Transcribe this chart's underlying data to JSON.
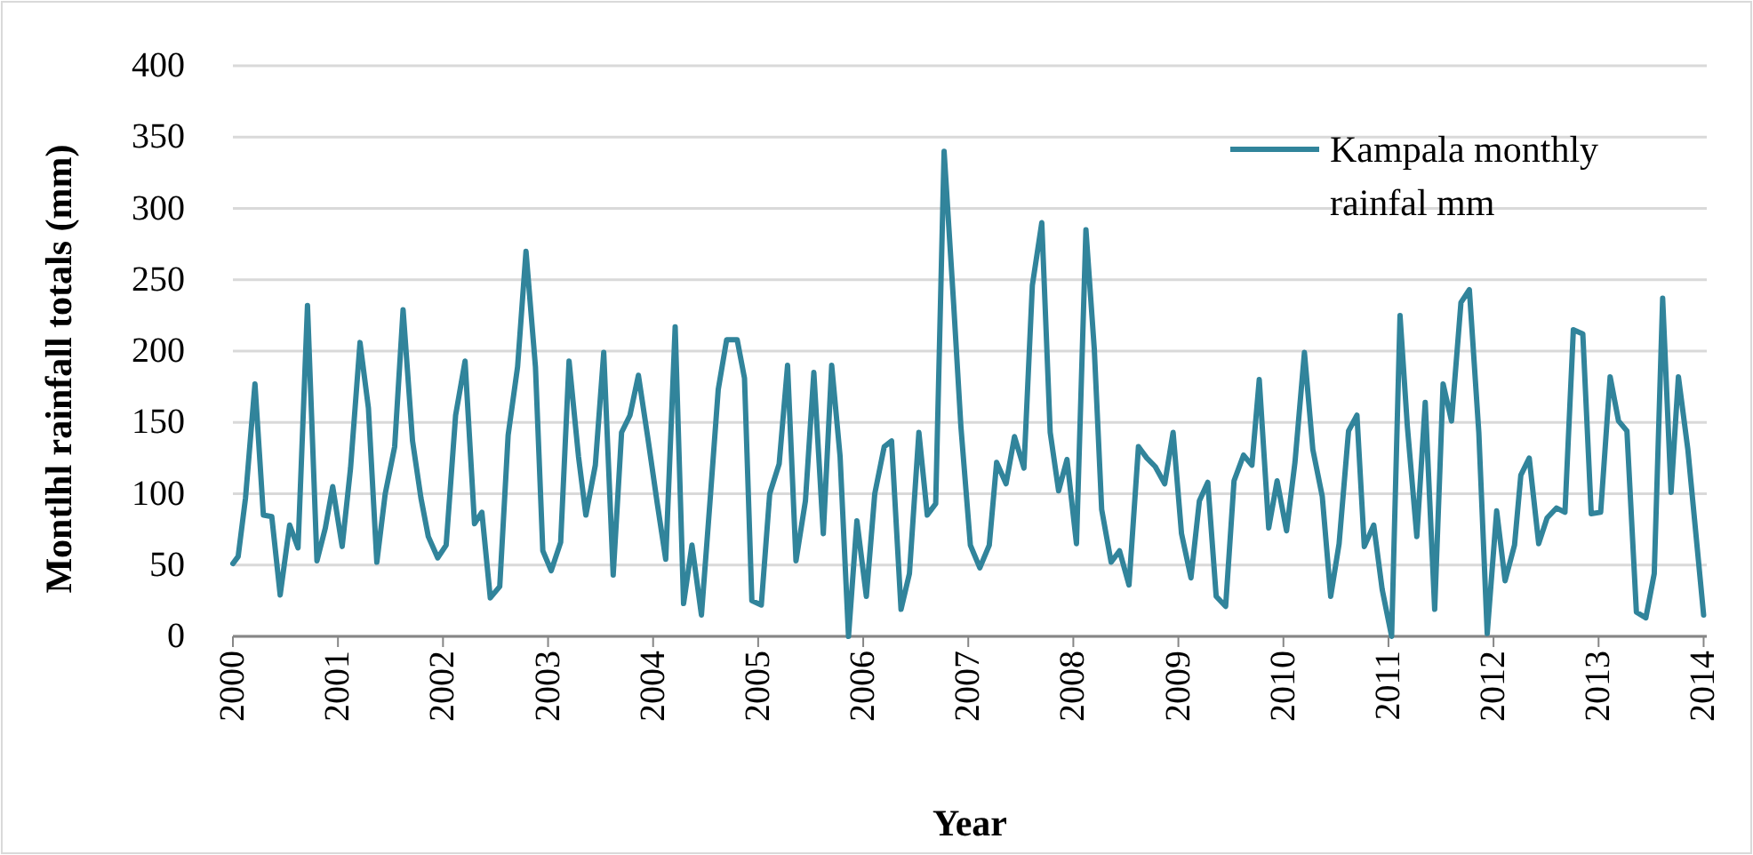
{
  "chart_data": {
    "type": "line",
    "xlabel": "Year",
    "ylabel": "Montlhl rainfall totals  (mm)",
    "xlim": [
      2000,
      2014.03
    ],
    "xticks": [
      2000,
      2001,
      2002,
      2003,
      2004,
      2005,
      2006,
      2007,
      2008,
      2009,
      2010,
      2011,
      2012,
      2013,
      2014
    ],
    "ylim": [
      0,
      400
    ],
    "yticks": [
      0,
      50,
      100,
      150,
      200,
      250,
      300,
      350,
      400
    ],
    "grid": "y",
    "legend": "top right",
    "marker": "none",
    "line_style": "solid",
    "series": [
      {
        "name": "Kampala monthly rainfal mm",
        "color": "#31849b",
        "x": [
          2000,
          2000.05,
          2000.12,
          2000.21,
          2000.29,
          2000.37,
          2000.45,
          2000.54,
          2000.62,
          2000.71,
          2000.8,
          2000.88,
          2000.95,
          2001.04,
          2001.12,
          2001.21,
          2001.29,
          2001.37,
          2001.45,
          2001.54,
          2001.62,
          2001.71,
          2001.79,
          2001.86,
          2001.95,
          2002.03,
          2002.12,
          2002.21,
          2002.3,
          2002.37,
          2002.45,
          2002.54,
          2002.62,
          2002.71,
          2002.79,
          2002.88,
          2002.95,
          2003.03,
          2003.12,
          2003.2,
          2003.29,
          2003.36,
          2003.45,
          2003.53,
          2003.62,
          2003.7,
          2003.78,
          2003.86,
          2003.95,
          2004.04,
          2004.12,
          2004.21,
          2004.29,
          2004.37,
          2004.46,
          2004.54,
          2004.62,
          2004.7,
          2004.8,
          2004.87,
          2004.94,
          2005.03,
          2005.11,
          2005.2,
          2005.28,
          2005.36,
          2005.45,
          2005.53,
          2005.62,
          2005.7,
          2005.78,
          2005.86,
          2005.94,
          2006.03,
          2006.11,
          2006.2,
          2006.27,
          2006.36,
          2006.44,
          2006.53,
          2006.61,
          2006.69,
          2006.77,
          2006.86,
          2006.93,
          2007.02,
          2007.11,
          2007.2,
          2007.27,
          2007.36,
          2007.44,
          2007.53,
          2007.61,
          2007.7,
          2007.78,
          2007.86,
          2007.94,
          2008.03,
          2008.12,
          2008.2,
          2008.27,
          2008.36,
          2008.44,
          2008.53,
          2008.62,
          2008.7,
          2008.78,
          2008.87,
          2008.95,
          2009.03,
          2009.12,
          2009.2,
          2009.28,
          2009.36,
          2009.45,
          2009.53,
          2009.62,
          2009.7,
          2009.77,
          2009.86,
          2009.94,
          2010.03,
          2010.11,
          2010.2,
          2010.28,
          2010.37,
          2010.45,
          2010.53,
          2010.62,
          2010.7,
          2010.77,
          2010.86,
          2010.94,
          2011.03,
          2011.11,
          2011.18,
          2011.27,
          2011.35,
          2011.44,
          2011.52,
          2011.6,
          2011.69,
          2011.77,
          2011.86,
          2011.94,
          2012.03,
          2012.11,
          2012.2,
          2012.26,
          2012.34,
          2012.43,
          2012.51,
          2012.6,
          2012.68,
          2012.76,
          2012.85,
          2012.93,
          2013.02,
          2013.11,
          2013.19,
          2013.27,
          2013.36,
          2013.45,
          2013.53,
          2013.61,
          2013.69,
          2013.76,
          2013.85,
          2014.0
        ],
        "values": [
          51,
          56,
          97,
          177,
          85,
          84,
          29,
          78,
          62,
          232,
          53,
          76,
          105,
          63,
          118,
          206,
          160,
          52,
          100,
          133,
          229,
          137,
          97,
          70,
          55,
          64,
          155,
          193,
          79,
          87,
          27,
          35,
          141,
          189,
          270,
          189,
          60,
          46,
          66,
          193,
          126,
          85,
          120,
          199,
          43,
          143,
          155,
          183,
          139,
          93,
          54,
          217,
          23,
          64,
          15,
          93,
          173,
          208,
          208,
          181,
          25,
          22,
          100,
          121,
          190,
          53,
          95,
          185,
          72,
          190,
          126,
          0,
          81,
          28,
          100,
          133,
          137,
          19,
          44,
          143,
          85,
          93,
          340,
          234,
          147,
          64,
          48,
          64,
          122,
          107,
          140,
          118,
          246,
          290,
          143,
          102,
          124,
          65,
          285,
          201,
          89,
          52,
          60,
          36,
          133,
          125,
          119,
          107,
          143,
          72,
          41,
          95,
          108,
          28,
          21,
          109,
          127,
          120,
          180,
          76,
          109,
          74,
          122,
          199,
          131,
          98,
          28,
          65,
          144,
          155,
          63,
          78,
          33,
          0,
          225,
          147,
          70,
          164,
          19,
          177,
          151,
          234,
          243,
          143,
          2,
          88,
          39,
          64,
          113,
          125,
          65,
          83,
          90,
          87,
          215,
          212,
          86,
          87,
          182,
          151,
          144,
          17,
          13,
          44,
          237,
          101,
          182,
          131,
          15
        ]
      }
    ]
  }
}
